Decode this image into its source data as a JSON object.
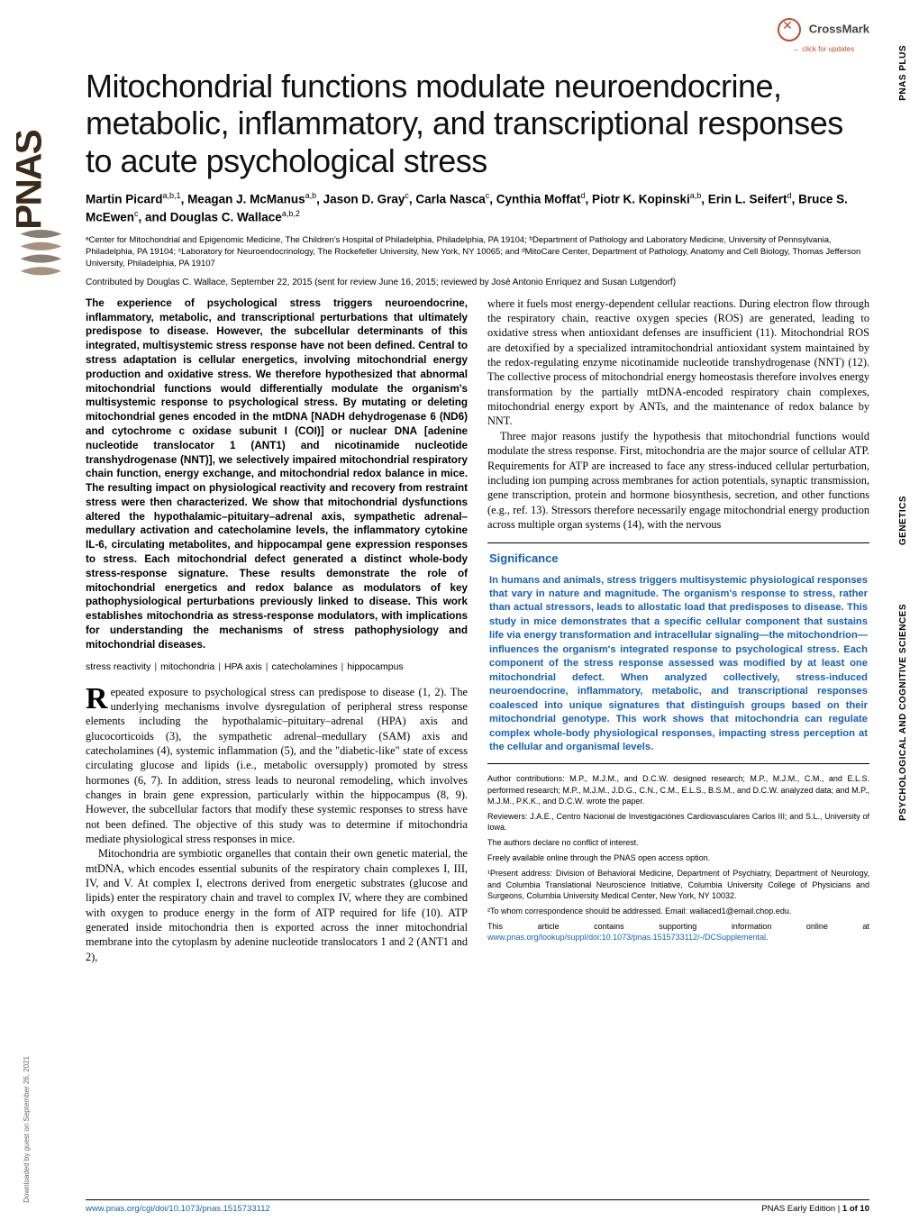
{
  "journal": {
    "logo_text": "PNAS",
    "crossmark_label": "CrossMark",
    "crossmark_sub": "← click for updates",
    "sidetabs": {
      "plus": "PNAS PLUS",
      "genetics": "GENETICS",
      "psych": "PSYCHOLOGICAL AND\nCOGNITIVE SCIENCES"
    },
    "download_credit": "Downloaded by guest on September 26, 2021"
  },
  "colors": {
    "link": "#1560b3",
    "significance": "#1560b3",
    "crossmark_accent": "#c04b2e",
    "text": "#111111",
    "background": "#ffffff"
  },
  "typography": {
    "title_font": "Helvetica Neue",
    "title_size_pt": 28,
    "title_weight": 500,
    "body_font": "Georgia",
    "body_size_pt": 9.3,
    "sans_font": "Helvetica Neue"
  },
  "article": {
    "title": "Mitochondrial functions modulate neuroendocrine, metabolic, inflammatory, and transcriptional responses to acute psychological stress",
    "authors_html": "Martin Picard<sup>a,b,1</sup>, Meagan J. McManus<sup>a,b</sup>, Jason D. Gray<sup>c</sup>, Carla Nasca<sup>c</sup>, Cynthia Moffat<sup>d</sup>, Piotr K. Kopinski<sup>a,b</sup>, Erin L. Seifert<sup>d</sup>, Bruce S. McEwen<sup>c</sup>, and Douglas C. Wallace<sup>a,b,2</sup>",
    "affiliations": "ᵃCenter for Mitochondrial and Epigenomic Medicine, The Children's Hospital of Philadelphia, Philadelphia, PA 19104; ᵇDepartment of Pathology and Laboratory Medicine, University of Pennsylvania, Philadelphia, PA 19104; ᶜLaboratory for Neuroendocrinology, The Rockefeller University, New York, NY 10065; and ᵈMitoCare Center, Department of Pathology, Anatomy and Cell Biology, Thomas Jefferson University, Philadelphia, PA 19107",
    "contributed": "Contributed by Douglas C. Wallace, September 22, 2015 (sent for review June 16, 2015; reviewed by José Antonio Enríquez and Susan Lutgendorf)",
    "abstract": "The experience of psychological stress triggers neuroendocrine, inflammatory, metabolic, and transcriptional perturbations that ultimately predispose to disease. However, the subcellular determinants of this integrated, multisystemic stress response have not been defined. Central to stress adaptation is cellular energetics, involving mitochondrial energy production and oxidative stress. We therefore hypothesized that abnormal mitochondrial functions would differentially modulate the organism's multisystemic response to psychological stress. By mutating or deleting mitochondrial genes encoded in the mtDNA [NADH dehydrogenase 6 (ND6) and cytochrome c oxidase subunit I (COI)] or nuclear DNA [adenine nucleotide translocator 1 (ANT1) and nicotinamide nucleotide transhydrogenase (NNT)], we selectively impaired mitochondrial respiratory chain function, energy exchange, and mitochondrial redox balance in mice. The resulting impact on physiological reactivity and recovery from restraint stress were then characterized. We show that mitochondrial dysfunctions altered the hypothalamic–pituitary–adrenal axis, sympathetic adrenal–medullary activation and catecholamine levels, the inflammatory cytokine IL-6, circulating metabolites, and hippocampal gene expression responses to stress. Each mitochondrial defect generated a distinct whole-body stress-response signature. These results demonstrate the role of mitochondrial energetics and redox balance as modulators of key pathophysiological perturbations previously linked to disease. This work establishes mitochondria as stress-response modulators, with implications for understanding the mechanisms of stress pathophysiology and mitochondrial diseases.",
    "keywords": [
      "stress reactivity",
      "mitochondria",
      "HPA axis",
      "catecholamines",
      "hippocampus"
    ],
    "body": {
      "p1": "Repeated exposure to psychological stress can predispose to disease (1, 2). The underlying mechanisms involve dysregulation of peripheral stress response elements including the hypothalamic–pituitary–adrenal (HPA) axis and glucocorticoids (3), the sympathetic adrenal–medullary (SAM) axis and catecholamines (4), systemic inflammation (5), and the \"diabetic-like\" state of excess circulating glucose and lipids (i.e., metabolic oversupply) promoted by stress hormones (6, 7). In addition, stress leads to neuronal remodeling, which involves changes in brain gene expression, particularly within the hippocampus (8, 9). However, the subcellular factors that modify these systemic responses to stress have not been defined. The objective of this study was to determine if mitochondria mediate physiological stress responses in mice.",
      "p2": "Mitochondria are symbiotic organelles that contain their own genetic material, the mtDNA, which encodes essential subunits of the respiratory chain complexes I, III, IV, and V. At complex I, electrons derived from energetic substrates (glucose and lipids) enter the respiratory chain and travel to complex IV, where they are combined with oxygen to produce energy in the form of ATP required for life (10). ATP generated inside mitochondria then is exported across the inner mitochondrial membrane into the cytoplasm by adenine nucleotide translocators 1 and 2 (ANT1 and 2),",
      "p3": "where it fuels most energy-dependent cellular reactions. During electron flow through the respiratory chain, reactive oxygen species (ROS) are generated, leading to oxidative stress when antioxidant defenses are insufficient (11). Mitochondrial ROS are detoxified by a specialized intramitochondrial antioxidant system maintained by the redox-regulating enzyme nicotinamide nucleotide transhydrogenase (NNT) (12). The collective process of mitochondrial energy homeostasis therefore involves energy transformation by the partially mtDNA-encoded respiratory chain complexes, mitochondrial energy export by ANTs, and the maintenance of redox balance by NNT.",
      "p4": "Three major reasons justify the hypothesis that mitochondrial functions would modulate the stress response. First, mitochondria are the major source of cellular ATP. Requirements for ATP are increased to face any stress-induced cellular perturbation, including ion pumping across membranes for action potentials, synaptic transmission, gene transcription, protein and hormone biosynthesis, secretion, and other functions (e.g., ref. 13). Stressors therefore necessarily engage mitochondrial energy production across multiple organ systems (14), with the nervous"
    },
    "significance": {
      "heading": "Significance",
      "text": "In humans and animals, stress triggers multisystemic physiological responses that vary in nature and magnitude. The organism's response to stress, rather than actual stressors, leads to allostatic load that predisposes to disease. This study in mice demonstrates that a specific cellular component that sustains life via energy transformation and intracellular signaling—the mitochondrion—influences the organism's integrated response to psychological stress. Each component of the stress response assessed was modified by at least one mitochondrial defect. When analyzed collectively, stress-induced neuroendocrine, inflammatory, metabolic, and transcriptional responses coalesced into unique signatures that distinguish groups based on their mitochondrial genotype. This work shows that mitochondria can regulate complex whole-body physiological responses, impacting stress perception at the cellular and organismal levels."
    },
    "footnotes": {
      "author_contrib": "Author contributions: M.P., M.J.M., and D.C.W. designed research; M.P., M.J.M., C.M., and E.L.S. performed research; M.P., M.J.M., J.D.G., C.N., C.M., E.L.S., B.S.M., and D.C.W. analyzed data; and M.P., M.J.M., P.K.K., and D.C.W. wrote the paper.",
      "reviewers": "Reviewers: J.A.E., Centro Nacional de Investigaciónes Cardiovasculares Carlos III; and S.L., University of Iowa.",
      "conflict": "The authors declare no conflict of interest.",
      "open_access": "Freely available online through the PNAS open access option.",
      "present_addr": "¹Present address: Division of Behavioral Medicine, Department of Psychiatry, Department of Neurology, and Columbia Translational Neuroscience Initiative, Columbia University College of Physicians and Surgeons, Columbia University Medical Center, New York, NY 10032.",
      "correspondence": "²To whom correspondence should be addressed. Email: wallaced1@email.chop.edu.",
      "supporting_pre": "This article contains supporting information online at ",
      "supporting_link": "www.pnas.org/lookup/suppl/doi:10.1073/pnas.1515733112/-/DCSupplemental",
      "supporting_post": "."
    },
    "footer": {
      "doi": "www.pnas.org/cgi/doi/10.1073/pnas.1515733112",
      "page_pre": "PNAS Early Edition  |  ",
      "page_bold": "1 of 10"
    }
  }
}
